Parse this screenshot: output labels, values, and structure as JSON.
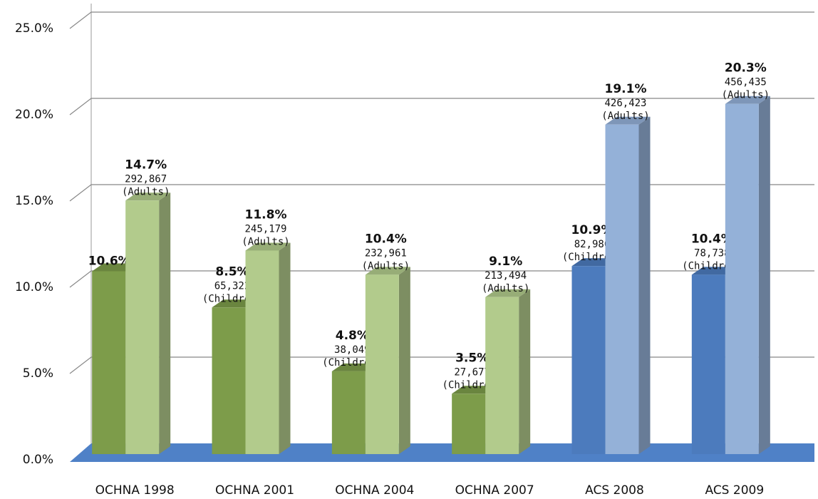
{
  "chart_data": {
    "type": "bar3d",
    "categories": [
      "OCHNA 1998",
      "OCHNA 2001",
      "OCHNA 2004",
      "OCHNA 2007",
      "ACS 2008",
      "ACS 2009"
    ],
    "series": [
      {
        "colors": [
          "#7d9c4a",
          "#7d9c4a",
          "#7d9c4a",
          "#7d9c4a",
          "#4c7bbd",
          "#4c7bbd"
        ],
        "values": [
          10.6,
          8.5,
          4.8,
          3.5,
          10.9,
          10.4
        ],
        "value_labels": [
          "10.6%*",
          "8.5%",
          "4.8%",
          "3.5%",
          "10.9%",
          "10.4%"
        ],
        "counts": [
          null,
          "65,322",
          "38,049",
          "27,677",
          "82,986",
          "78,738"
        ],
        "groups": [
          null,
          "(Children)",
          "(Children)",
          "(Children)",
          "(Children)",
          "(Children)"
        ]
      },
      {
        "colors": [
          "#b2cb8c",
          "#b2cb8c",
          "#b2cb8c",
          "#b2cb8c",
          "#94b1d8",
          "#94b1d8"
        ],
        "values": [
          14.7,
          11.8,
          10.4,
          9.1,
          19.1,
          20.3
        ],
        "value_labels": [
          "14.7%",
          "11.8%",
          "10.4%",
          "9.1%",
          "19.1%",
          "20.3%"
        ],
        "counts": [
          "292,867",
          "245,179",
          "232,961",
          "213,494",
          "426,423",
          "456,435"
        ],
        "groups": [
          "(Adults)",
          "(Adults)",
          "(Adults)",
          "(Adults)",
          "(Adults)",
          "(Adults)"
        ]
      }
    ],
    "ylim": [
      0,
      25
    ],
    "yticks": [
      {
        "value": 0,
        "label": "0.0%"
      },
      {
        "value": 5,
        "label": "5.0%"
      },
      {
        "value": 10,
        "label": "10.0%"
      },
      {
        "value": 15,
        "label": "15.0%"
      },
      {
        "value": 20,
        "label": "20.0%"
      },
      {
        "value": 25,
        "label": "25.0%"
      }
    ],
    "grid": true
  }
}
